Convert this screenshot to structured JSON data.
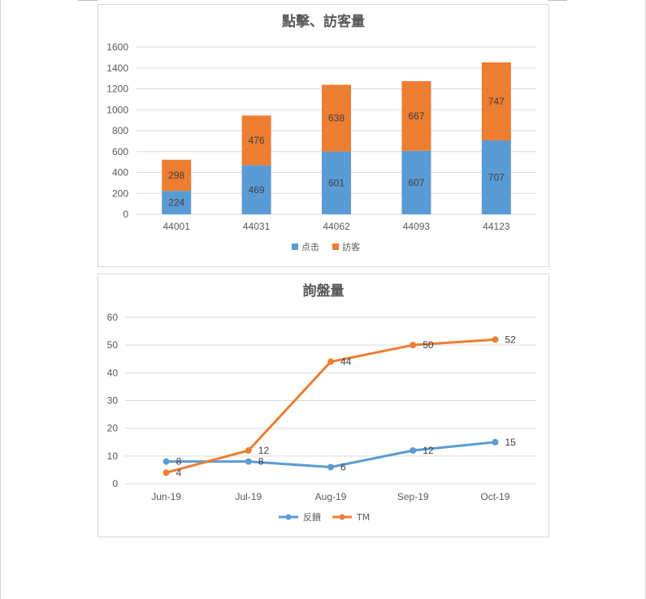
{
  "chart_data": [
    {
      "type": "bar",
      "stacked": true,
      "title": "點擊、訪客量",
      "categories": [
        "44001",
        "44031",
        "44062",
        "44093",
        "44123"
      ],
      "series": [
        {
          "name": "点击",
          "values": [
            224,
            469,
            601,
            607,
            707
          ],
          "color": "#5b9bd5"
        },
        {
          "name": "訪客",
          "values": [
            298,
            476,
            638,
            667,
            747
          ],
          "color": "#ed7d31"
        }
      ],
      "ylim": [
        0,
        1600
      ],
      "yticks": [
        "0",
        "200",
        "400",
        "600",
        "800",
        "1000",
        "1200",
        "1400",
        "1600"
      ],
      "grid": true,
      "legend": "bottom"
    },
    {
      "type": "line",
      "title": "詢盤量",
      "categories": [
        "Jun-19",
        "Jul-19",
        "Aug-19",
        "Sep-19",
        "Oct-19"
      ],
      "series": [
        {
          "name": "反饋",
          "values": [
            8,
            8,
            6,
            12,
            15
          ],
          "color": "#5b9bd5"
        },
        {
          "name": "TM",
          "values": [
            4,
            12,
            44,
            50,
            52
          ],
          "color": "#ed7d31"
        }
      ],
      "ylim": [
        0,
        60
      ],
      "yticks": [
        "0",
        "10",
        "20",
        "30",
        "40",
        "50",
        "60"
      ],
      "grid": true,
      "legend": "bottom"
    }
  ]
}
